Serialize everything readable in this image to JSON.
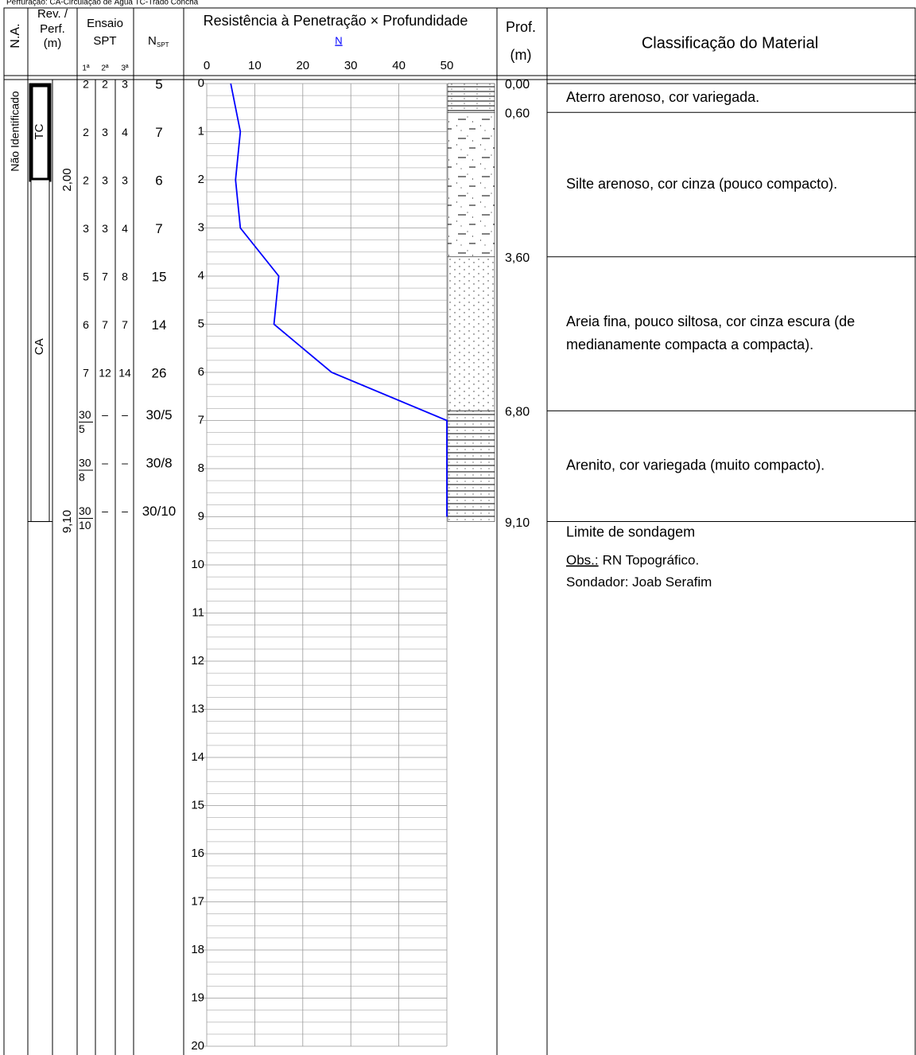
{
  "header": {
    "caption": "Perfuração: CA-Circulação de Água TC-Trado Concha",
    "na": "N.A.",
    "rev_perf": [
      "Rev. /",
      "Perf.",
      "(m)"
    ],
    "spt": [
      "Ensaio",
      "SPT"
    ],
    "blows": [
      "1ª",
      "2ª",
      "3ª"
    ],
    "nspt": "N",
    "nspt_sub": "SPT",
    "chart_title": "Resistência à Penetração × Profundidade",
    "chart_axis": "N",
    "prof": [
      "Prof.",
      "(m)"
    ],
    "classification": "Classificação do Material"
  },
  "water_level": "Não Identificado",
  "casing": [
    {
      "label": "TC"
    },
    {
      "label": "CA"
    }
  ],
  "perf_depths": [
    {
      "value": 2,
      "label": "2,00"
    },
    {
      "value": 9.1,
      "label": "9,10"
    }
  ],
  "spt_rows": [
    {
      "blows": [
        2,
        2,
        3
      ],
      "n": 5
    },
    {
      "blows": [
        2,
        3,
        4
      ],
      "n": 7
    },
    {
      "blows": [
        2,
        3,
        3
      ],
      "n": 6
    },
    {
      "blows": [
        3,
        3,
        4
      ],
      "n": 7
    },
    {
      "blows": [
        5,
        7,
        8
      ],
      "n": 15
    },
    {
      "blows": [
        6,
        7,
        7
      ],
      "n": 14
    },
    {
      "blows": [
        7,
        12,
        14
      ],
      "n": 26
    },
    {
      "blows": [
        {
          "blows": 30,
          "cm": 5
        },
        "–",
        "–"
      ],
      "n": 50,
      "n_label": "30/5"
    },
    {
      "blows": [
        {
          "blows": 30,
          "cm": 8
        },
        "–",
        "–"
      ],
      "n": 50,
      "n_label": "30/8"
    },
    {
      "blows": [
        {
          "blows": 30,
          "cm": 10
        },
        "–",
        "–"
      ],
      "n": 50,
      "n_label": "30/10"
    }
  ],
  "chart": {
    "xlim": [
      0,
      50
    ],
    "xticks": [
      0,
      10,
      20,
      30,
      40,
      50
    ],
    "depth_lim": [
      0,
      20
    ],
    "depth_ticks": [
      0,
      1,
      2,
      3,
      4,
      5,
      6,
      7,
      8,
      9,
      10,
      11,
      12,
      13,
      14,
      15,
      16,
      17,
      18,
      19,
      20
    ],
    "color": "#0000ff",
    "grid": true
  },
  "layers": [
    {
      "top": {
        "value": 0,
        "label": "0,00"
      },
      "description": [
        "Aterro arenoso, cor variegada."
      ]
    },
    {
      "top": {
        "value": 0.6,
        "label": "0,60"
      },
      "description": [
        "Silte arenoso, cor cinza (pouco compacto)."
      ]
    },
    {
      "top": {
        "value": 3.6,
        "label": "3,60"
      },
      "description": [
        "Areia fina, pouco siltosa, cor cinza escura (de",
        "medianamente compacta a compacta)."
      ]
    },
    {
      "top": {
        "value": 6.8,
        "label": "6,80"
      },
      "description": [
        "Arenito, cor variegada (muito compacto)."
      ]
    },
    {
      "top": {
        "value": 9.1,
        "label": "9,10"
      },
      "description": [
        "Limite de sondagem"
      ]
    }
  ],
  "notes": {
    "obs_label": "Obs.:",
    "obs": "RN Topográfico.",
    "driller": "Sondador: Joab Serafim"
  }
}
